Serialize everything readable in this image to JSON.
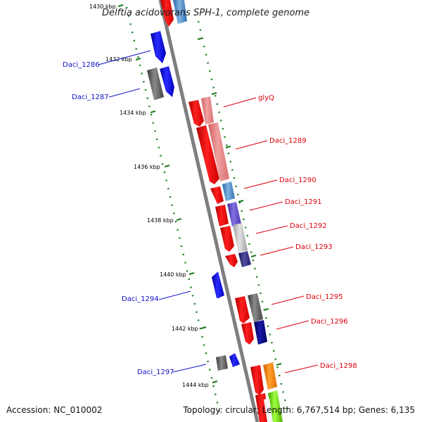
{
  "title": "Delftia acidovorans SPH-1, complete genome",
  "footer": {
    "accession": "Accession: NC_010002",
    "summary": "Topology: circular; Length: 6,767,514 bp; Genes: 6,135"
  },
  "ticks": [
    "1430 kbp",
    "1432 kbp",
    "1434 kbp",
    "1436 kbp",
    "1438 kbp",
    "1440 kbp",
    "1442 kbp",
    "1444 kbp"
  ],
  "labels_left": [
    "Daci_1286",
    "Daci_1287",
    "Daci_1294",
    "Daci_1297"
  ],
  "labels_right": [
    "glyQ",
    "Daci_1289",
    "Daci_1290",
    "Daci_1291",
    "Daci_1292",
    "Daci_1293",
    "Daci_1295",
    "Daci_1296",
    "Daci_1298"
  ],
  "colors": {
    "backbone": "#808080",
    "forward_strand": "#0000e6",
    "reverse_strand": "#ee0000",
    "label_left": "#1010c8",
    "label_right": "#e0000a",
    "tick": "#1a7a1a"
  }
}
